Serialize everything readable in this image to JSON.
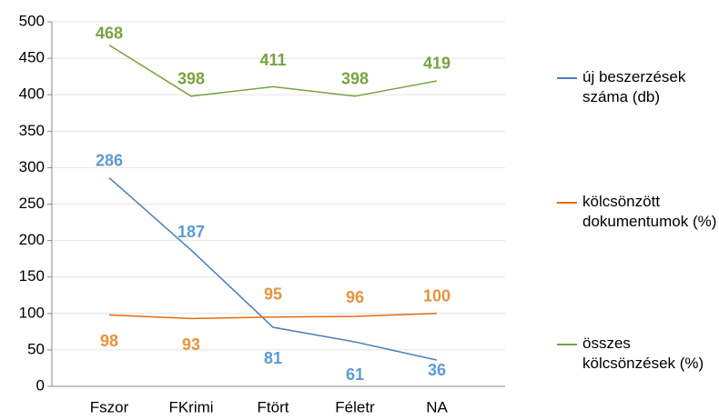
{
  "chart_data": {
    "type": "line",
    "categories": [
      "Fszor",
      "FKrimi",
      "Ftört",
      "Féletr",
      "NA"
    ],
    "series": [
      {
        "name": "új beszerzések száma (db)",
        "color": "#4a7ebb",
        "label_color": "#5b9bd5",
        "values": [
          286,
          187,
          81,
          61,
          36
        ]
      },
      {
        "name": "kölcsönzött dokumentumok (%)",
        "color": "#e46c0a",
        "label_color": "#e8923a",
        "values": [
          98,
          93,
          95,
          96,
          100
        ]
      },
      {
        "name": "összes kölcsönzések (%)",
        "color": "#77a33e",
        "label_color": "#77a33e",
        "values": [
          468,
          398,
          411,
          398,
          419
        ]
      }
    ],
    "ylim": [
      0,
      500
    ],
    "yticks": [
      0,
      50,
      100,
      150,
      200,
      250,
      300,
      350,
      400,
      450,
      500
    ],
    "grid": true,
    "legend": "right"
  }
}
